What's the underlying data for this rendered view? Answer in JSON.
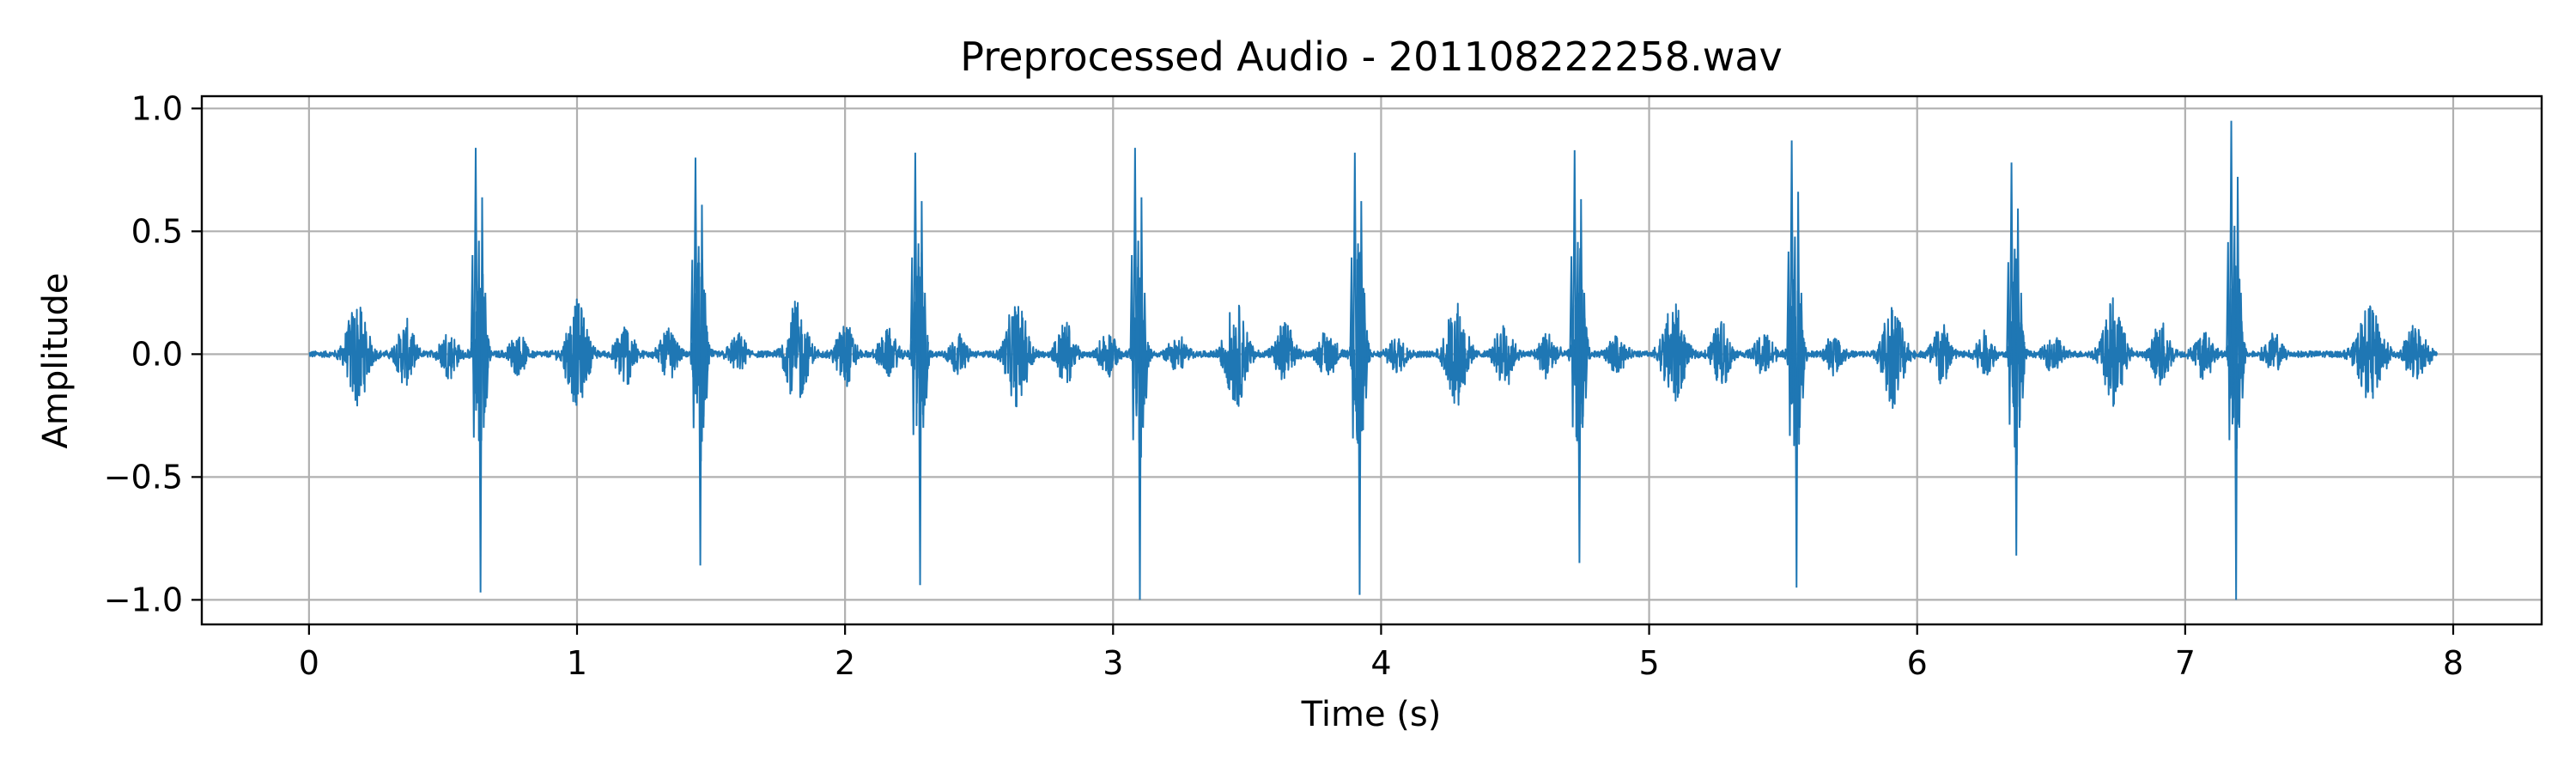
{
  "chart_data": {
    "type": "line",
    "title": "Preprocessed Audio - 201108222258.wav",
    "xlabel": "Time (s)",
    "ylabel": "Amplitude",
    "xlim": [
      -0.4,
      8.33
    ],
    "ylim": [
      -1.1,
      1.05
    ],
    "xticks": [
      0,
      1,
      2,
      3,
      4,
      5,
      6,
      7,
      8
    ],
    "xtick_labels": [
      "0",
      "1",
      "2",
      "3",
      "4",
      "5",
      "6",
      "7",
      "8"
    ],
    "yticks": [
      1.0,
      0.5,
      0.0,
      -0.5,
      -1.0
    ],
    "ytick_labels": [
      "1.0",
      "0.5",
      "0.0",
      "−0.5",
      "−1.0"
    ],
    "grid": true,
    "series": [
      {
        "color": "#1f77b4",
        "signal_duration_s": 7.94,
        "peaks": [
          {
            "t": 0.64,
            "max": 0.84,
            "min": -0.97
          },
          {
            "t": 1.46,
            "max": 0.8,
            "min": -0.86
          },
          {
            "t": 2.28,
            "max": 0.82,
            "min": -0.94
          },
          {
            "t": 3.1,
            "max": 0.84,
            "min": -1.0
          },
          {
            "t": 3.92,
            "max": 0.82,
            "min": -0.98
          },
          {
            "t": 4.74,
            "max": 0.83,
            "min": -0.85
          },
          {
            "t": 5.55,
            "max": 0.87,
            "min": -0.95
          },
          {
            "t": 6.37,
            "max": 0.78,
            "min": -0.82
          },
          {
            "t": 7.19,
            "max": 0.95,
            "min": -1.0
          }
        ]
      }
    ]
  }
}
